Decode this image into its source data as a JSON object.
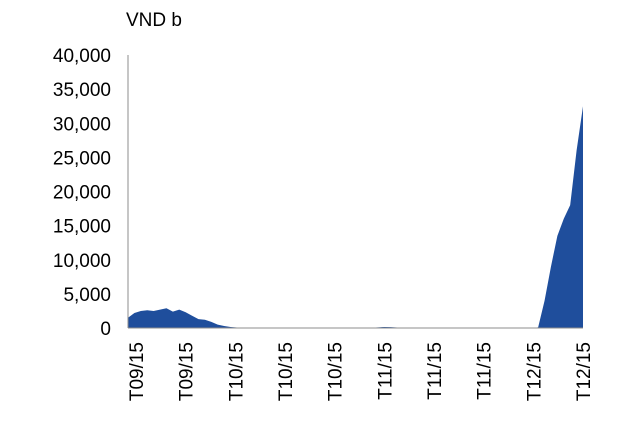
{
  "chart_data": {
    "type": "area",
    "title": "",
    "ylabel": "VND b",
    "xlabel": "",
    "ylim": [
      0,
      40000
    ],
    "yticks": [
      0,
      5000,
      10000,
      15000,
      20000,
      25000,
      30000,
      35000,
      40000
    ],
    "ytick_labels": [
      "0",
      "5,000",
      "10,000",
      "15,000",
      "20,000",
      "25,000",
      "30,000",
      "35,000",
      "40,000"
    ],
    "xtick_labels": [
      "T09/15",
      "T09/15",
      "T10/15",
      "T10/15",
      "T10/15",
      "T11/15",
      "T11/15",
      "T11/15",
      "T12/15",
      "T12/15"
    ],
    "series": [
      {
        "color": "#1f4e9c",
        "values": [
          1500,
          2200,
          2500,
          2600,
          2500,
          2700,
          2900,
          2400,
          2700,
          2300,
          1800,
          1300,
          1200,
          900,
          500,
          300,
          150,
          80,
          50,
          40,
          30,
          30,
          30,
          30,
          30,
          30,
          30,
          30,
          30,
          30,
          30,
          30,
          30,
          30,
          30,
          30,
          30,
          30,
          30,
          100,
          150,
          120,
          80,
          30,
          20,
          20,
          20,
          20,
          20,
          20,
          20,
          20,
          20,
          20,
          20,
          20,
          20,
          20,
          20,
          20,
          20,
          20,
          20,
          20,
          100,
          4000,
          9000,
          13500,
          16000,
          18000,
          26000,
          32500
        ]
      }
    ],
    "grid": false,
    "legend": "none"
  }
}
